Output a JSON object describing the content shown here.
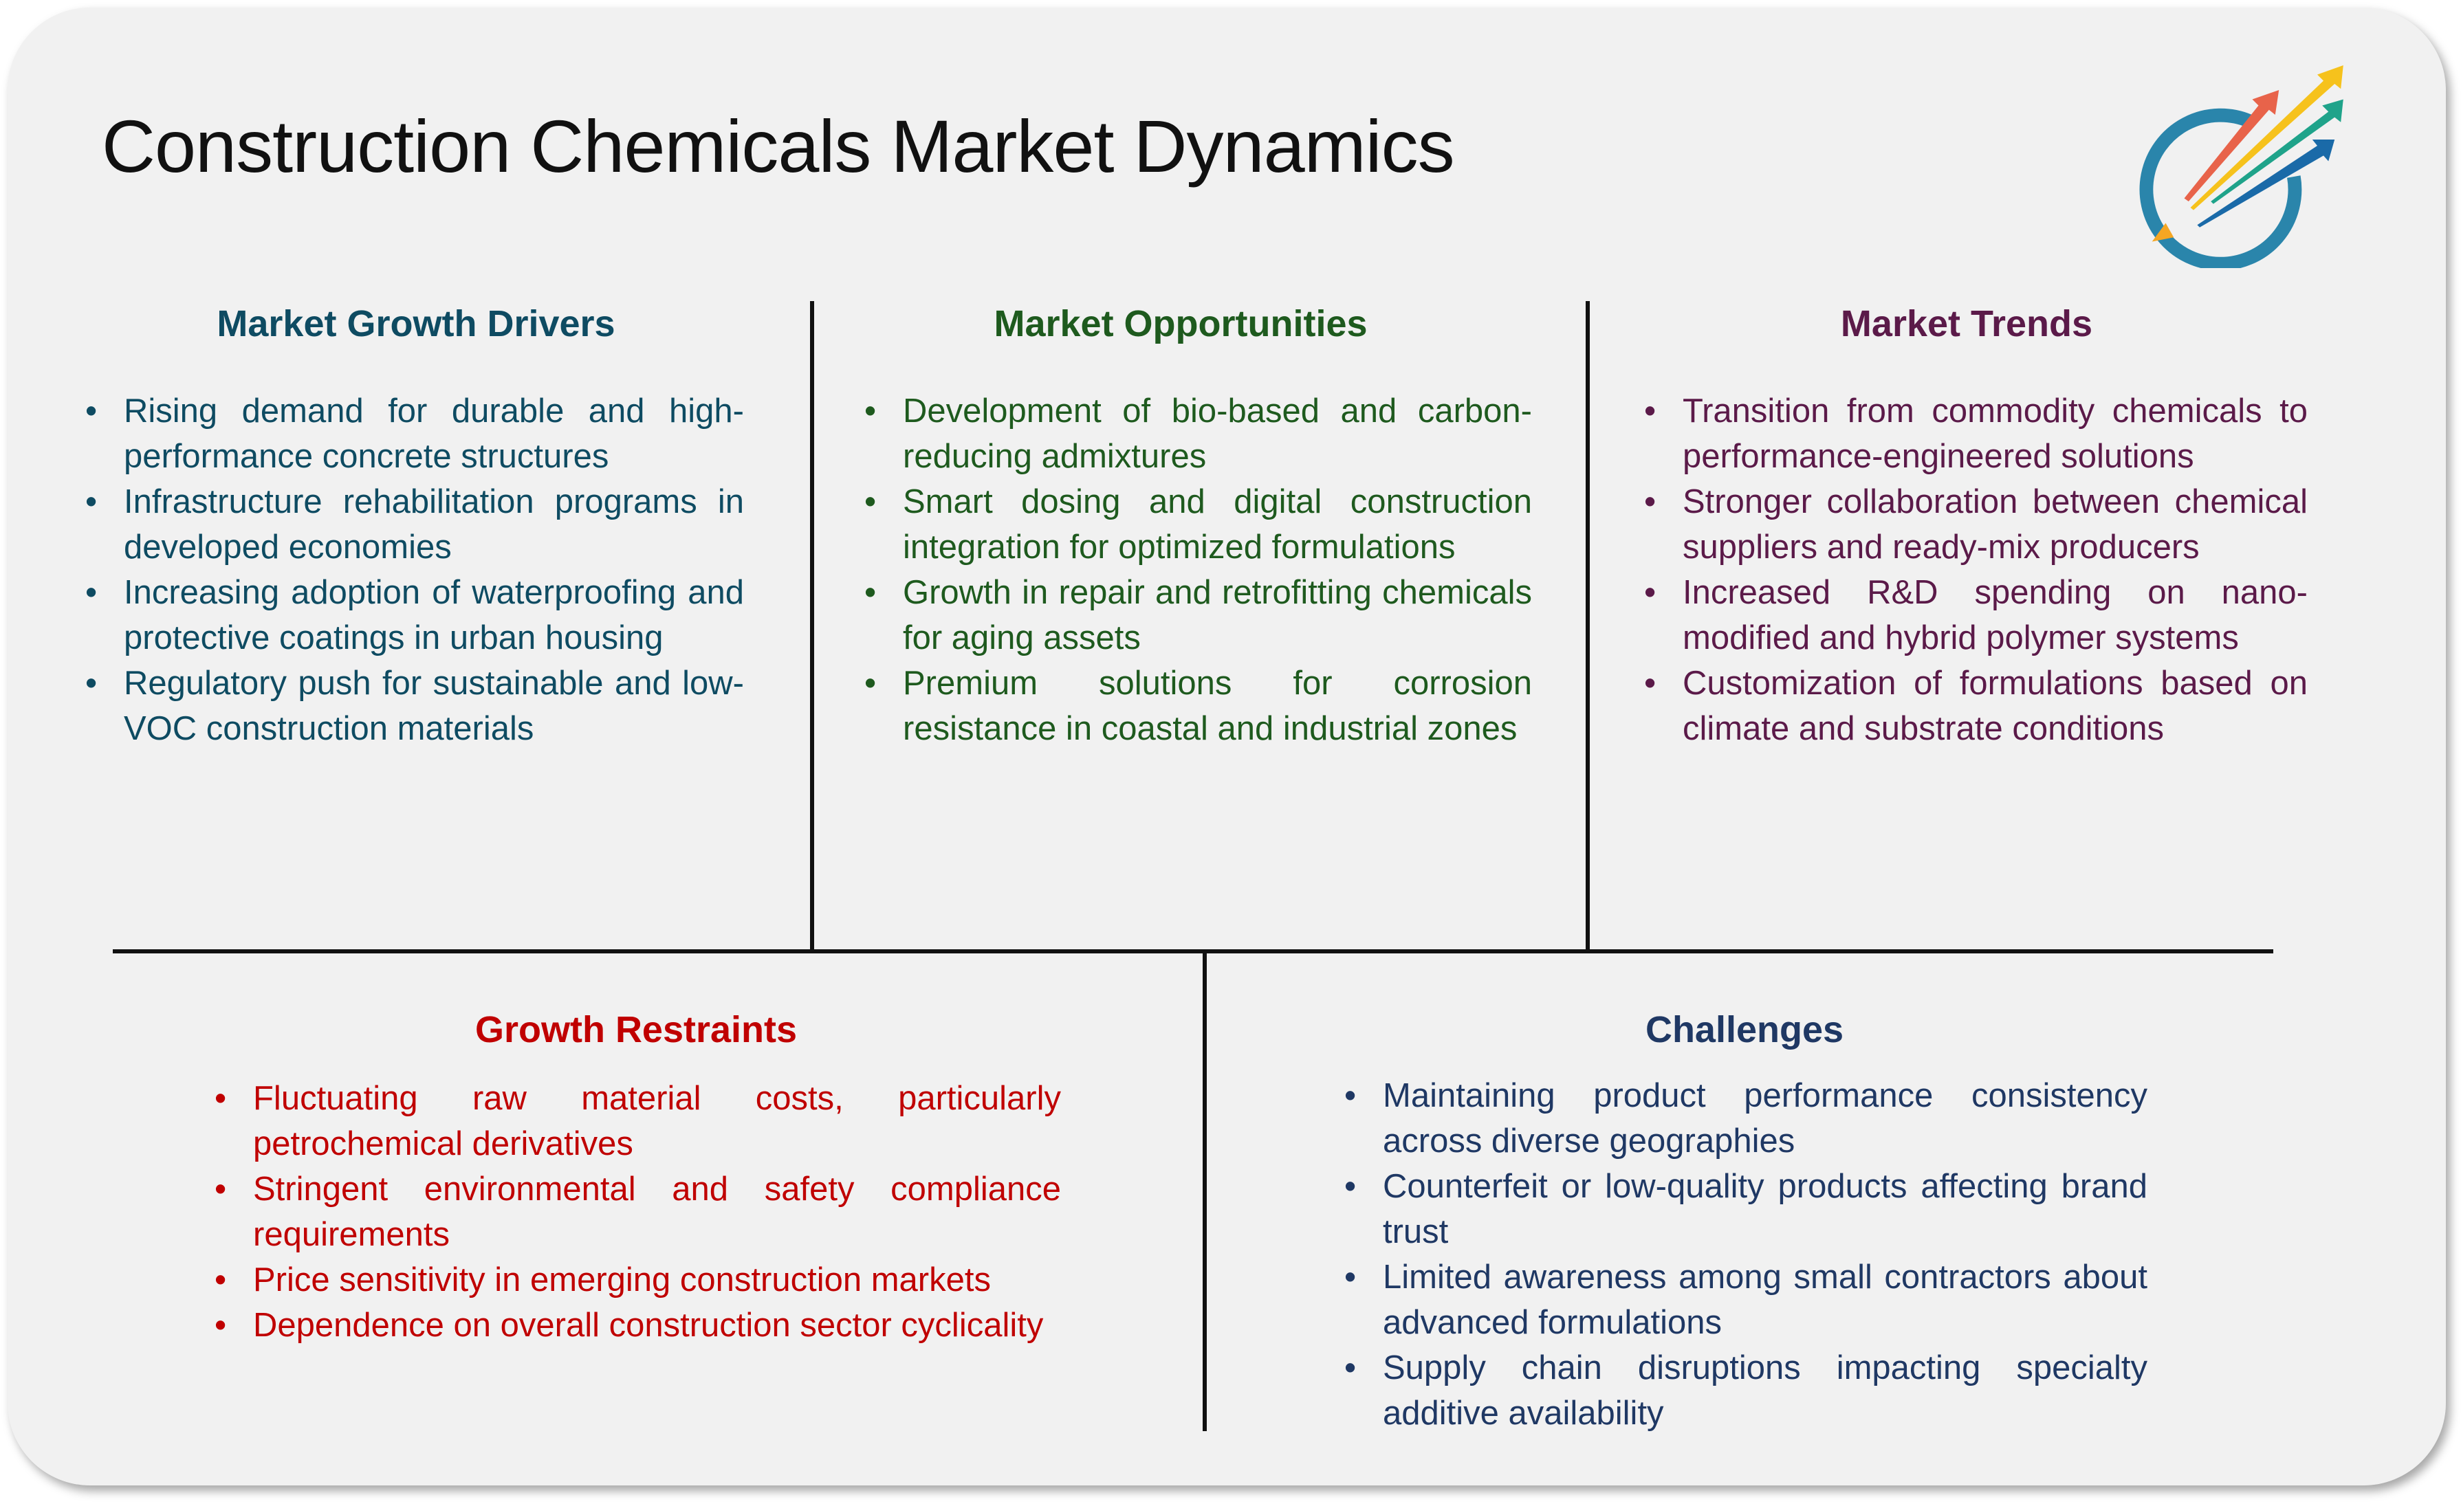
{
  "title": "Construction Chemicals Market Dynamics",
  "logo": {
    "icon": "rising-arrows-circle-logo",
    "colors": [
      "#e8634a",
      "#f6c21c",
      "#1fa38a",
      "#1a6aa8",
      "#2a8cb0",
      "#f5a623"
    ]
  },
  "colors": {
    "drivers": "#0e4b62",
    "opportunities": "#1e5a1e",
    "trends": "#5b1a49",
    "restraints": "#c00000",
    "challenges": "#1f3864",
    "background": "#f1f1f1"
  },
  "sections": {
    "drivers": {
      "heading": "Market Growth Drivers",
      "items": [
        "Rising demand for durable and high-performance concrete structures",
        "Infrastructure rehabilitation programs in developed economies",
        "Increasing adoption of waterproofing and protective coatings in urban housing",
        "Regulatory push for sustainable and low-VOC construction materials"
      ]
    },
    "opportunities": {
      "heading": "Market Opportunities",
      "items": [
        "Development of bio-based and carbon-reducing admixtures",
        "Smart dosing and digital construction integration for optimized formulations",
        "Growth in repair and retrofitting chemicals for aging assets",
        "Premium solutions for corrosion resistance in coastal and industrial zones"
      ]
    },
    "trends": {
      "heading": "Market Trends",
      "items": [
        "Transition from commodity chemicals to performance-engineered solutions",
        "Stronger collaboration between chemical suppliers and ready-mix producers",
        "Increased R&D spending on nano-modified and hybrid polymer systems",
        "Customization of formulations based on climate and substrate conditions"
      ]
    },
    "restraints": {
      "heading": "Growth Restraints",
      "items": [
        "Fluctuating raw material costs, particularly petrochemical derivatives",
        "Stringent environmental and safety compliance requirements",
        "Price sensitivity in emerging construction markets",
        "Dependence on overall construction sector cyclicality"
      ]
    },
    "challenges": {
      "heading": "Challenges",
      "items": [
        "Maintaining product performance consistency across diverse geographies",
        "Counterfeit or low-quality products affecting brand trust",
        "Limited awareness among small contractors about advanced formulations",
        "Supply chain disruptions impacting specialty additive availability"
      ]
    }
  }
}
